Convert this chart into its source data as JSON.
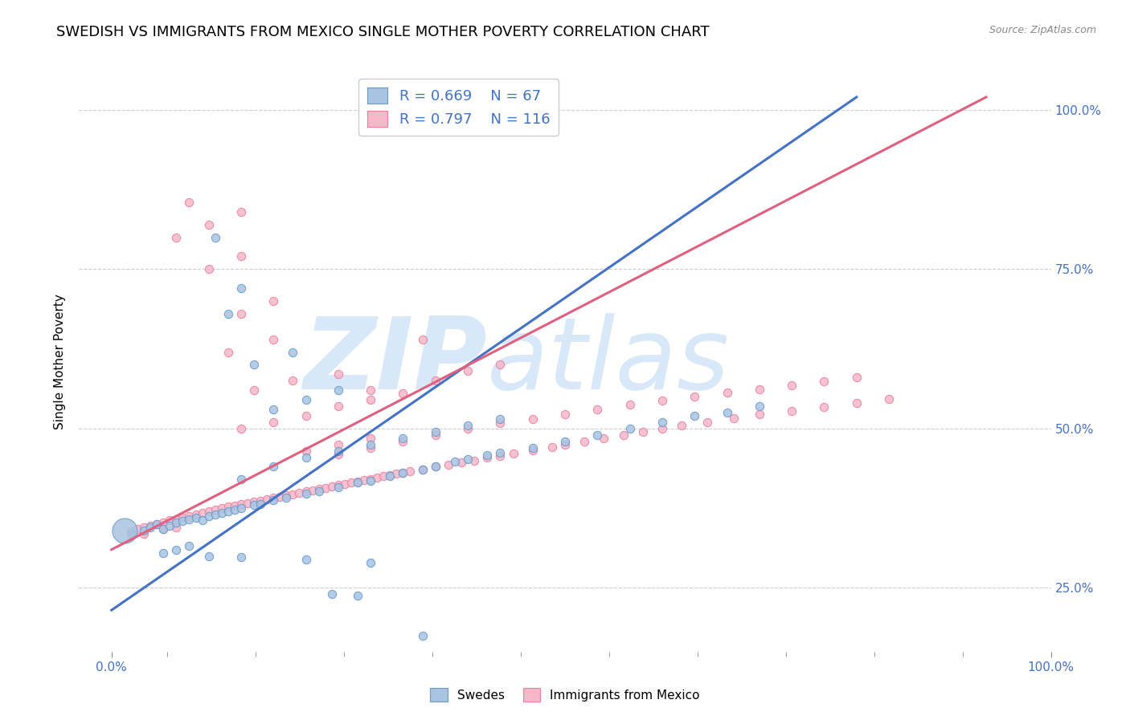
{
  "title": "SWEDISH VS IMMIGRANTS FROM MEXICO SINGLE MOTHER POVERTY CORRELATION CHART",
  "source": "Source: ZipAtlas.com",
  "ylabel": "Single Mother Poverty",
  "ytick_values": [
    0.25,
    0.5,
    0.75,
    1.0
  ],
  "legend_blue_r": "R = 0.669",
  "legend_blue_n": "N = 67",
  "legend_pink_r": "R = 0.797",
  "legend_pink_n": "N = 116",
  "legend_label_blue": "Swedes",
  "legend_label_pink": "Immigrants from Mexico",
  "blue_color": "#A8C4E0",
  "pink_color": "#F5B8C8",
  "blue_edge_color": "#6699CC",
  "pink_edge_color": "#E87FA0",
  "blue_line_color": "#4472C4",
  "pink_line_color": "#E06080",
  "watermark_top": "ZIP",
  "watermark_bot": "atlas",
  "watermark_color": "#D8E8F8",
  "blue_scatter": [
    [
      0.003,
      0.335
    ],
    [
      0.005,
      0.34
    ],
    [
      0.006,
      0.345
    ],
    [
      0.007,
      0.35
    ],
    [
      0.008,
      0.342
    ],
    [
      0.009,
      0.348
    ],
    [
      0.01,
      0.352
    ],
    [
      0.011,
      0.355
    ],
    [
      0.012,
      0.358
    ],
    [
      0.013,
      0.36
    ],
    [
      0.014,
      0.356
    ],
    [
      0.015,
      0.362
    ],
    [
      0.016,
      0.365
    ],
    [
      0.017,
      0.368
    ],
    [
      0.018,
      0.37
    ],
    [
      0.019,
      0.373
    ],
    [
      0.02,
      0.375
    ],
    [
      0.022,
      0.38
    ],
    [
      0.023,
      0.382
    ],
    [
      0.025,
      0.388
    ],
    [
      0.027,
      0.392
    ],
    [
      0.03,
      0.398
    ],
    [
      0.032,
      0.402
    ],
    [
      0.035,
      0.408
    ],
    [
      0.038,
      0.415
    ],
    [
      0.04,
      0.418
    ],
    [
      0.043,
      0.425
    ],
    [
      0.045,
      0.43
    ],
    [
      0.048,
      0.435
    ],
    [
      0.05,
      0.44
    ],
    [
      0.053,
      0.448
    ],
    [
      0.055,
      0.452
    ],
    [
      0.058,
      0.458
    ],
    [
      0.06,
      0.462
    ],
    [
      0.065,
      0.47
    ],
    [
      0.07,
      0.48
    ],
    [
      0.075,
      0.49
    ],
    [
      0.08,
      0.5
    ],
    [
      0.085,
      0.51
    ],
    [
      0.09,
      0.52
    ],
    [
      0.095,
      0.525
    ],
    [
      0.1,
      0.535
    ],
    [
      0.02,
      0.42
    ],
    [
      0.025,
      0.44
    ],
    [
      0.03,
      0.455
    ],
    [
      0.035,
      0.465
    ],
    [
      0.04,
      0.475
    ],
    [
      0.045,
      0.485
    ],
    [
      0.05,
      0.495
    ],
    [
      0.055,
      0.505
    ],
    [
      0.06,
      0.515
    ],
    [
      0.025,
      0.53
    ],
    [
      0.03,
      0.545
    ],
    [
      0.035,
      0.56
    ],
    [
      0.022,
      0.6
    ],
    [
      0.028,
      0.62
    ],
    [
      0.018,
      0.68
    ],
    [
      0.02,
      0.72
    ],
    [
      0.016,
      0.8
    ],
    [
      0.008,
      0.305
    ],
    [
      0.01,
      0.31
    ],
    [
      0.012,
      0.316
    ],
    [
      0.015,
      0.3
    ],
    [
      0.02,
      0.298
    ],
    [
      0.03,
      0.295
    ],
    [
      0.04,
      0.29
    ],
    [
      0.034,
      0.24
    ],
    [
      0.038,
      0.238
    ],
    [
      0.048,
      0.175
    ]
  ],
  "blue_scatter_big": [
    [
      0.002,
      0.34
    ]
  ],
  "blue_scatter_big_size": 500,
  "blue_scatter_size": 55,
  "pink_scatter": [
    [
      0.003,
      0.338
    ],
    [
      0.004,
      0.342
    ],
    [
      0.005,
      0.345
    ],
    [
      0.006,
      0.348
    ],
    [
      0.007,
      0.35
    ],
    [
      0.008,
      0.353
    ],
    [
      0.009,
      0.356
    ],
    [
      0.01,
      0.358
    ],
    [
      0.011,
      0.36
    ],
    [
      0.012,
      0.363
    ],
    [
      0.013,
      0.365
    ],
    [
      0.014,
      0.368
    ],
    [
      0.015,
      0.37
    ],
    [
      0.016,
      0.372
    ],
    [
      0.017,
      0.375
    ],
    [
      0.018,
      0.377
    ],
    [
      0.019,
      0.379
    ],
    [
      0.02,
      0.381
    ],
    [
      0.021,
      0.383
    ],
    [
      0.022,
      0.385
    ],
    [
      0.023,
      0.387
    ],
    [
      0.024,
      0.389
    ],
    [
      0.025,
      0.391
    ],
    [
      0.026,
      0.393
    ],
    [
      0.027,
      0.395
    ],
    [
      0.028,
      0.397
    ],
    [
      0.029,
      0.399
    ],
    [
      0.03,
      0.401
    ],
    [
      0.031,
      0.403
    ],
    [
      0.032,
      0.405
    ],
    [
      0.033,
      0.407
    ],
    [
      0.034,
      0.409
    ],
    [
      0.035,
      0.411
    ],
    [
      0.036,
      0.413
    ],
    [
      0.037,
      0.415
    ],
    [
      0.038,
      0.417
    ],
    [
      0.039,
      0.419
    ],
    [
      0.04,
      0.421
    ],
    [
      0.041,
      0.423
    ],
    [
      0.042,
      0.425
    ],
    [
      0.043,
      0.427
    ],
    [
      0.044,
      0.429
    ],
    [
      0.045,
      0.431
    ],
    [
      0.046,
      0.433
    ],
    [
      0.048,
      0.436
    ],
    [
      0.05,
      0.44
    ],
    [
      0.052,
      0.443
    ],
    [
      0.054,
      0.447
    ],
    [
      0.056,
      0.45
    ],
    [
      0.058,
      0.454
    ],
    [
      0.06,
      0.457
    ],
    [
      0.062,
      0.461
    ],
    [
      0.065,
      0.466
    ],
    [
      0.068,
      0.471
    ],
    [
      0.07,
      0.475
    ],
    [
      0.073,
      0.48
    ],
    [
      0.076,
      0.485
    ],
    [
      0.079,
      0.49
    ],
    [
      0.082,
      0.495
    ],
    [
      0.085,
      0.5
    ],
    [
      0.088,
      0.505
    ],
    [
      0.092,
      0.51
    ],
    [
      0.096,
      0.516
    ],
    [
      0.1,
      0.522
    ],
    [
      0.105,
      0.528
    ],
    [
      0.11,
      0.534
    ],
    [
      0.115,
      0.54
    ],
    [
      0.12,
      0.546
    ],
    [
      0.035,
      0.46
    ],
    [
      0.04,
      0.47
    ],
    [
      0.045,
      0.48
    ],
    [
      0.05,
      0.49
    ],
    [
      0.055,
      0.5
    ],
    [
      0.06,
      0.508
    ],
    [
      0.065,
      0.515
    ],
    [
      0.07,
      0.522
    ],
    [
      0.075,
      0.53
    ],
    [
      0.08,
      0.537
    ],
    [
      0.085,
      0.544
    ],
    [
      0.09,
      0.55
    ],
    [
      0.095,
      0.556
    ],
    [
      0.1,
      0.562
    ],
    [
      0.105,
      0.568
    ],
    [
      0.11,
      0.574
    ],
    [
      0.115,
      0.58
    ],
    [
      0.03,
      0.465
    ],
    [
      0.035,
      0.475
    ],
    [
      0.04,
      0.485
    ],
    [
      0.02,
      0.5
    ],
    [
      0.025,
      0.51
    ],
    [
      0.03,
      0.52
    ],
    [
      0.035,
      0.535
    ],
    [
      0.04,
      0.545
    ],
    [
      0.045,
      0.555
    ],
    [
      0.022,
      0.56
    ],
    [
      0.028,
      0.575
    ],
    [
      0.035,
      0.585
    ],
    [
      0.018,
      0.62
    ],
    [
      0.025,
      0.64
    ],
    [
      0.02,
      0.68
    ],
    [
      0.025,
      0.7
    ],
    [
      0.015,
      0.75
    ],
    [
      0.02,
      0.77
    ],
    [
      0.01,
      0.8
    ],
    [
      0.015,
      0.82
    ],
    [
      0.02,
      0.84
    ],
    [
      0.012,
      0.855
    ],
    [
      0.04,
      0.56
    ],
    [
      0.05,
      0.575
    ],
    [
      0.055,
      0.59
    ],
    [
      0.06,
      0.6
    ],
    [
      0.048,
      0.64
    ],
    [
      0.005,
      0.335
    ],
    [
      0.008,
      0.342
    ],
    [
      0.01,
      0.345
    ]
  ],
  "pink_scatter_size": 55,
  "blue_line_x": [
    0.0,
    0.115
  ],
  "blue_line_y": [
    0.215,
    1.02
  ],
  "pink_line_x": [
    0.0,
    0.135
  ],
  "pink_line_y": [
    0.31,
    1.02
  ],
  "xlim": [
    -0.005,
    0.145
  ],
  "ylim": [
    0.15,
    1.06
  ],
  "xticklabels_left": "0.0%",
  "xticklabels_right": "100.0%",
  "grid_color": "#CCCCCC",
  "grid_style": "--",
  "background_color": "#FFFFFF",
  "title_fontsize": 13,
  "axis_label_fontsize": 11,
  "tick_fontsize": 11,
  "legend_fontsize": 13
}
